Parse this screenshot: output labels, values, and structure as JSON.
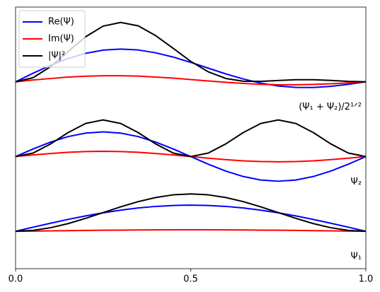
{
  "chart_data": {
    "type": "line",
    "x": [
      0,
      0.05,
      0.1,
      0.15,
      0.2,
      0.25,
      0.3,
      0.35,
      0.4,
      0.45,
      0.5,
      0.55,
      0.6,
      0.65,
      0.7,
      0.75,
      0.8,
      0.85,
      0.9,
      0.95,
      1
    ],
    "xlim": [
      0,
      1
    ],
    "xticks": [
      {
        "value": 0,
        "label": "0.0"
      },
      0.5,
      {
        "value": 1,
        "label": "1.0"
      }
    ],
    "ylim": [
      -0.5,
      3.0
    ],
    "legend_corner": "upper-left",
    "legend": [
      {
        "name": "Re(Ψ)",
        "color": "#0000ff"
      },
      {
        "name": "Im(Ψ)",
        "color": "#ff0000"
      },
      {
        "name": "|Ψ|²",
        "color": "#000000"
      }
    ],
    "groups": [
      {
        "label": "Ψ₁",
        "series": [
          [
            0,
            0.055,
            0.108,
            0.159,
            0.206,
            0.247,
            0.283,
            0.312,
            0.333,
            0.346,
            0.35,
            0.346,
            0.333,
            0.312,
            0.283,
            0.247,
            0.206,
            0.159,
            0.108,
            0.055,
            0
          ],
          [
            0,
            0.003,
            0.006,
            0.009,
            0.012,
            0.014,
            0.016,
            0.018,
            0.019,
            0.02,
            0.02,
            0.02,
            0.019,
            0.018,
            0.016,
            0.014,
            0.012,
            0.009,
            0.006,
            0.003,
            0
          ],
          [
            0,
            0.012,
            0.048,
            0.103,
            0.173,
            0.25,
            0.327,
            0.397,
            0.452,
            0.488,
            0.5,
            0.488,
            0.452,
            0.397,
            0.327,
            0.25,
            0.173,
            0.103,
            0.048,
            0.012,
            0
          ]
        ]
      },
      {
        "label": "Ψ₂",
        "series": [
          [
            1,
            1.102,
            1.194,
            1.267,
            1.314,
            1.33,
            1.314,
            1.267,
            1.194,
            1.102,
            1,
            0.898,
            0.806,
            0.733,
            0.686,
            0.67,
            0.686,
            0.733,
            0.806,
            0.898,
            1
          ],
          [
            1,
            1.022,
            1.041,
            1.057,
            1.067,
            1.07,
            1.067,
            1.057,
            1.041,
            1.022,
            1,
            0.978,
            0.959,
            0.943,
            0.933,
            0.93,
            0.933,
            0.943,
            0.959,
            0.978,
            1
          ],
          [
            1,
            1.047,
            1.169,
            1.321,
            1.443,
            1.49,
            1.443,
            1.321,
            1.169,
            1.047,
            1,
            1.047,
            1.169,
            1.321,
            1.443,
            1.49,
            1.443,
            1.321,
            1.169,
            1.047,
            1
          ]
        ]
      },
      {
        "label": "(Ψ₁ + Ψ₂)/2¹ᐟ²",
        "series": [
          [
            2,
            2.115,
            2.221,
            2.312,
            2.381,
            2.424,
            2.438,
            2.426,
            2.388,
            2.331,
            2.26,
            2.183,
            2.106,
            2.038,
            1.982,
            1.944,
            1.925,
            1.924,
            1.939,
            1.967,
            2
          ],
          [
            2,
            2.024,
            2.044,
            2.063,
            2.075,
            2.081,
            2.081,
            2.076,
            2.064,
            2.049,
            2.03,
            2.011,
            1.994,
            1.978,
            1.967,
            1.961,
            1.961,
            1.965,
            1.974,
            1.986,
            2
          ],
          [
            2,
            2.055,
            2.203,
            2.405,
            2.603,
            2.745,
            2.794,
            2.749,
            2.618,
            2.448,
            2.274,
            2.134,
            2.045,
            2.008,
            2.006,
            2.018,
            2.028,
            2.028,
            2.018,
            2.005,
            2
          ]
        ]
      }
    ]
  }
}
